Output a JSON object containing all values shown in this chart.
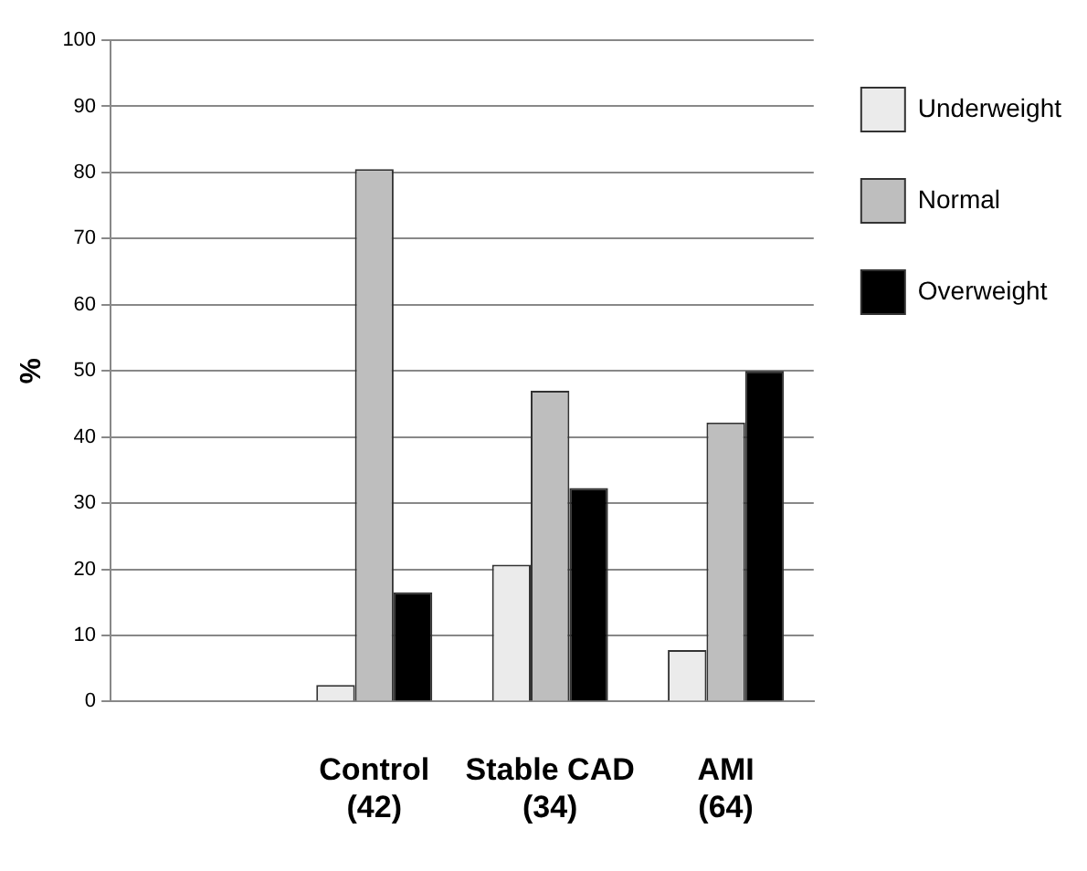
{
  "chart_data": {
    "type": "bar",
    "ylabel": "%",
    "categories": [
      null,
      "Control\n(42)",
      "Stable CAD\n(34)",
      "AMI\n(64)"
    ],
    "series": [
      {
        "name": "Underweight",
        "color": "#ebebeb",
        "values": [
          null,
          2.5,
          20.7,
          7.8
        ]
      },
      {
        "name": "Normal",
        "color": "#bebebe",
        "values": [
          null,
          80.5,
          47,
          42.2
        ]
      },
      {
        "name": "Overweight",
        "color": "#000000",
        "values": [
          null,
          16.5,
          32.3,
          50
        ]
      }
    ],
    "ylim": [
      0,
      100
    ],
    "yticks": [
      0,
      10,
      20,
      30,
      40,
      50,
      60,
      70,
      80,
      90,
      100
    ],
    "grid": "y",
    "legend": "top right"
  }
}
